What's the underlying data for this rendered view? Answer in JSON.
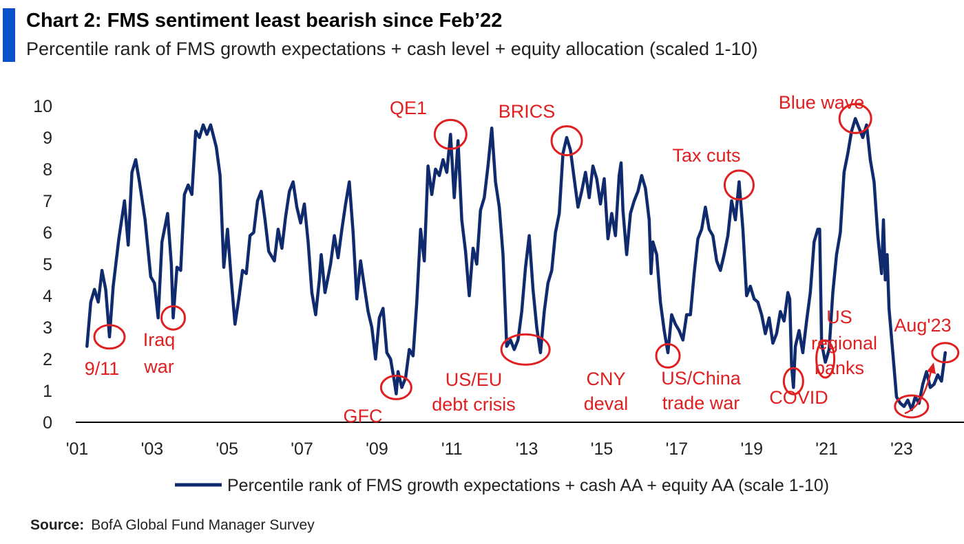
{
  "header": {
    "title": "Chart 2: FMS sentiment least bearish since Feb’22",
    "subtitle": "Percentile rank of FMS growth expectations + cash level + equity allocation (scaled 1-10)",
    "accent_color": "#0a50c8"
  },
  "footer": {
    "source_label": "Source:",
    "source_text": "BofA Global Fund Manager Survey"
  },
  "colors": {
    "line": "#102a6e",
    "annotation": "#e02020",
    "axis": "#000000"
  },
  "chart_data": {
    "type": "line",
    "xlim": [
      2001,
      2024.7
    ],
    "ylim": [
      0,
      10
    ],
    "yticks": [
      0,
      1,
      2,
      3,
      4,
      5,
      6,
      7,
      8,
      9,
      10
    ],
    "xticks": [
      {
        "value": 2001,
        "label": "'01"
      },
      {
        "value": 2003,
        "label": "'03"
      },
      {
        "value": 2005,
        "label": "'05"
      },
      {
        "value": 2007,
        "label": "'07"
      },
      {
        "value": 2009,
        "label": "'09"
      },
      {
        "value": 2011,
        "label": "'11"
      },
      {
        "value": 2013,
        "label": "'13"
      },
      {
        "value": 2015,
        "label": "'15"
      },
      {
        "value": 2017,
        "label": "'17"
      },
      {
        "value": 2019,
        "label": "'19"
      },
      {
        "value": 2021,
        "label": "'21"
      },
      {
        "value": 2023,
        "label": "'23"
      }
    ],
    "grid": false,
    "legend_position": "bottom",
    "series": [
      {
        "name": "Percentile rank of FMS growth expectations + cash AA + equity AA (scale 1-10)",
        "points": [
          [
            2001.3,
            2.4
          ],
          [
            2001.4,
            3.8
          ],
          [
            2001.5,
            4.2
          ],
          [
            2001.6,
            3.8
          ],
          [
            2001.7,
            4.8
          ],
          [
            2001.8,
            4.2
          ],
          [
            2001.9,
            2.7
          ],
          [
            2002.0,
            4.3
          ],
          [
            2002.15,
            5.8
          ],
          [
            2002.3,
            7.0
          ],
          [
            2002.4,
            5.6
          ],
          [
            2002.5,
            7.9
          ],
          [
            2002.6,
            8.3
          ],
          [
            2002.7,
            7.6
          ],
          [
            2002.85,
            6.4
          ],
          [
            2003.0,
            4.6
          ],
          [
            2003.1,
            4.4
          ],
          [
            2003.2,
            3.3
          ],
          [
            2003.3,
            5.7
          ],
          [
            2003.45,
            6.6
          ],
          [
            2003.55,
            5.0
          ],
          [
            2003.6,
            3.3
          ],
          [
            2003.7,
            4.9
          ],
          [
            2003.8,
            4.8
          ],
          [
            2003.9,
            7.2
          ],
          [
            2004.0,
            7.5
          ],
          [
            2004.1,
            7.2
          ],
          [
            2004.2,
            9.2
          ],
          [
            2004.3,
            9.0
          ],
          [
            2004.4,
            9.4
          ],
          [
            2004.5,
            9.1
          ],
          [
            2004.6,
            9.4
          ],
          [
            2004.75,
            8.7
          ],
          [
            2004.85,
            7.8
          ],
          [
            2004.95,
            4.9
          ],
          [
            2005.05,
            6.1
          ],
          [
            2005.15,
            4.5
          ],
          [
            2005.25,
            3.1
          ],
          [
            2005.35,
            3.9
          ],
          [
            2005.45,
            4.8
          ],
          [
            2005.55,
            4.7
          ],
          [
            2005.65,
            5.9
          ],
          [
            2005.75,
            6.0
          ],
          [
            2005.85,
            7.0
          ],
          [
            2005.95,
            7.3
          ],
          [
            2006.05,
            6.4
          ],
          [
            2006.15,
            5.4
          ],
          [
            2006.3,
            5.1
          ],
          [
            2006.4,
            6.1
          ],
          [
            2006.5,
            5.5
          ],
          [
            2006.6,
            6.5
          ],
          [
            2006.7,
            7.3
          ],
          [
            2006.8,
            7.6
          ],
          [
            2006.9,
            6.8
          ],
          [
            2007.0,
            6.3
          ],
          [
            2007.1,
            6.9
          ],
          [
            2007.2,
            5.7
          ],
          [
            2007.3,
            4.1
          ],
          [
            2007.4,
            3.4
          ],
          [
            2007.5,
            4.5
          ],
          [
            2007.55,
            5.3
          ],
          [
            2007.65,
            4.1
          ],
          [
            2007.8,
            5.0
          ],
          [
            2007.9,
            5.9
          ],
          [
            2008.0,
            5.2
          ],
          [
            2008.1,
            6.1
          ],
          [
            2008.2,
            6.9
          ],
          [
            2008.3,
            7.6
          ],
          [
            2008.4,
            6.0
          ],
          [
            2008.5,
            3.9
          ],
          [
            2008.6,
            5.1
          ],
          [
            2008.7,
            4.3
          ],
          [
            2008.8,
            3.5
          ],
          [
            2008.9,
            3.0
          ],
          [
            2009.0,
            2.0
          ],
          [
            2009.1,
            3.3
          ],
          [
            2009.2,
            3.6
          ],
          [
            2009.3,
            2.2
          ],
          [
            2009.4,
            2.0
          ],
          [
            2009.5,
            1.3
          ],
          [
            2009.55,
            0.9
          ],
          [
            2009.6,
            1.6
          ],
          [
            2009.7,
            1.1
          ],
          [
            2009.8,
            1.4
          ],
          [
            2009.9,
            2.3
          ],
          [
            2010.0,
            2.1
          ],
          [
            2010.1,
            3.8
          ],
          [
            2010.2,
            6.1
          ],
          [
            2010.3,
            5.1
          ],
          [
            2010.4,
            8.1
          ],
          [
            2010.5,
            7.2
          ],
          [
            2010.6,
            8.0
          ],
          [
            2010.7,
            7.8
          ],
          [
            2010.8,
            8.3
          ],
          [
            2010.9,
            7.9
          ],
          [
            2011.0,
            9.1
          ],
          [
            2011.1,
            7.1
          ],
          [
            2011.2,
            8.9
          ],
          [
            2011.3,
            6.4
          ],
          [
            2011.4,
            5.4
          ],
          [
            2011.5,
            4.0
          ],
          [
            2011.6,
            5.5
          ],
          [
            2011.7,
            5.0
          ],
          [
            2011.8,
            6.7
          ],
          [
            2011.9,
            7.1
          ],
          [
            2012.0,
            8.1
          ],
          [
            2012.1,
            9.3
          ],
          [
            2012.2,
            7.6
          ],
          [
            2012.3,
            6.8
          ],
          [
            2012.4,
            5.3
          ],
          [
            2012.5,
            2.4
          ],
          [
            2012.6,
            2.6
          ],
          [
            2012.7,
            2.3
          ],
          [
            2012.8,
            2.6
          ],
          [
            2012.9,
            3.5
          ],
          [
            2013.0,
            4.9
          ],
          [
            2013.1,
            5.9
          ],
          [
            2013.2,
            4.2
          ],
          [
            2013.3,
            3.0
          ],
          [
            2013.4,
            2.2
          ],
          [
            2013.5,
            3.5
          ],
          [
            2013.6,
            4.4
          ],
          [
            2013.7,
            4.8
          ],
          [
            2013.8,
            6.0
          ],
          [
            2013.9,
            6.6
          ],
          [
            2014.0,
            8.5
          ],
          [
            2014.1,
            9.0
          ],
          [
            2014.2,
            8.6
          ],
          [
            2014.3,
            7.7
          ],
          [
            2014.4,
            6.8
          ],
          [
            2014.5,
            7.3
          ],
          [
            2014.6,
            7.9
          ],
          [
            2014.7,
            7.1
          ],
          [
            2014.8,
            8.1
          ],
          [
            2014.9,
            7.7
          ],
          [
            2015.0,
            6.9
          ],
          [
            2015.1,
            7.7
          ],
          [
            2015.2,
            5.8
          ],
          [
            2015.3,
            6.6
          ],
          [
            2015.4,
            5.9
          ],
          [
            2015.5,
            7.8
          ],
          [
            2015.55,
            8.2
          ],
          [
            2015.6,
            6.7
          ],
          [
            2015.7,
            5.3
          ],
          [
            2015.8,
            6.6
          ],
          [
            2015.9,
            7.0
          ],
          [
            2016.0,
            7.3
          ],
          [
            2016.1,
            7.8
          ],
          [
            2016.2,
            7.4
          ],
          [
            2016.3,
            6.4
          ],
          [
            2016.35,
            4.7
          ],
          [
            2016.4,
            5.7
          ],
          [
            2016.5,
            5.3
          ],
          [
            2016.6,
            3.8
          ],
          [
            2016.7,
            2.9
          ],
          [
            2016.8,
            2.2
          ],
          [
            2016.9,
            3.4
          ],
          [
            2017.0,
            3.1
          ],
          [
            2017.1,
            2.9
          ],
          [
            2017.2,
            2.6
          ],
          [
            2017.3,
            3.4
          ],
          [
            2017.4,
            3.4
          ],
          [
            2017.5,
            4.7
          ],
          [
            2017.6,
            5.8
          ],
          [
            2017.7,
            6.1
          ],
          [
            2017.8,
            6.8
          ],
          [
            2017.9,
            6.1
          ],
          [
            2018.0,
            5.9
          ],
          [
            2018.1,
            5.1
          ],
          [
            2018.2,
            4.8
          ],
          [
            2018.3,
            5.3
          ],
          [
            2018.4,
            5.9
          ],
          [
            2018.5,
            7.0
          ],
          [
            2018.6,
            6.4
          ],
          [
            2018.7,
            7.6
          ],
          [
            2018.8,
            6.1
          ],
          [
            2018.9,
            4.0
          ],
          [
            2019.0,
            4.3
          ],
          [
            2019.1,
            3.9
          ],
          [
            2019.2,
            3.8
          ],
          [
            2019.3,
            3.4
          ],
          [
            2019.4,
            2.8
          ],
          [
            2019.5,
            3.3
          ],
          [
            2019.6,
            2.5
          ],
          [
            2019.7,
            2.8
          ],
          [
            2019.8,
            3.5
          ],
          [
            2019.9,
            3.2
          ],
          [
            2020.0,
            4.1
          ],
          [
            2020.05,
            3.9
          ],
          [
            2020.1,
            1.8
          ],
          [
            2020.15,
            1.1
          ],
          [
            2020.2,
            2.4
          ],
          [
            2020.3,
            2.9
          ],
          [
            2020.4,
            2.2
          ],
          [
            2020.5,
            3.2
          ],
          [
            2020.6,
            4.1
          ],
          [
            2020.7,
            5.7
          ],
          [
            2020.8,
            6.1
          ],
          [
            2020.85,
            6.1
          ],
          [
            2020.9,
            2.5
          ],
          [
            2021.0,
            1.9
          ],
          [
            2021.1,
            2.3
          ],
          [
            2021.2,
            4.1
          ],
          [
            2021.3,
            5.3
          ],
          [
            2021.4,
            6.0
          ],
          [
            2021.5,
            7.9
          ],
          [
            2021.6,
            8.5
          ],
          [
            2021.7,
            9.2
          ],
          [
            2021.8,
            9.6
          ],
          [
            2021.9,
            9.3
          ],
          [
            2022.0,
            9.0
          ],
          [
            2022.1,
            9.4
          ],
          [
            2022.2,
            8.3
          ],
          [
            2022.3,
            7.6
          ],
          [
            2022.4,
            5.9
          ],
          [
            2022.5,
            4.7
          ],
          [
            2022.55,
            6.4
          ],
          [
            2022.6,
            4.5
          ],
          [
            2022.65,
            5.3
          ],
          [
            2022.7,
            3.6
          ],
          [
            2022.8,
            2.2
          ],
          [
            2022.9,
            0.8
          ],
          [
            2023.0,
            0.6
          ],
          [
            2023.1,
            0.5
          ],
          [
            2023.2,
            0.7
          ],
          [
            2023.3,
            0.4
          ],
          [
            2023.4,
            0.8
          ],
          [
            2023.5,
            0.6
          ],
          [
            2023.6,
            1.2
          ],
          [
            2023.7,
            1.6
          ],
          [
            2023.8,
            1.1
          ],
          [
            2023.9,
            1.2
          ],
          [
            2024.0,
            1.5
          ],
          [
            2024.1,
            1.3
          ],
          [
            2024.2,
            2.2
          ]
        ]
      }
    ],
    "annotations": [
      {
        "text": "9/11",
        "x": 2001.9,
        "y": 2.7
      },
      {
        "text": "Iraq war",
        "x": 2003.6,
        "y": 3.3
      },
      {
        "text": "GFC",
        "x": 2009.55,
        "y": 1.1
      },
      {
        "text": "QE1",
        "x": 2011.0,
        "y": 9.1
      },
      {
        "text": "US/EU debt crisis",
        "x": 2013.0,
        "y": 2.3
      },
      {
        "text": "BRICS",
        "x": 2014.1,
        "y": 8.9
      },
      {
        "text": "CNY deval",
        "x": 2016.8,
        "y": 2.1
      },
      {
        "text": "Tax cuts",
        "x": 2018.7,
        "y": 7.5
      },
      {
        "text": "US/China trade war",
        "x": 2020.15,
        "y": 1.3
      },
      {
        "text": "COVID",
        "x": 2021.0,
        "y": 2.0
      },
      {
        "text": "Blue wave",
        "x": 2021.8,
        "y": 9.6
      },
      {
        "text": "US regional banks",
        "x": 2023.3,
        "y": 0.5
      },
      {
        "text": "Aug'23",
        "x": 2024.2,
        "y": 2.2
      }
    ]
  }
}
